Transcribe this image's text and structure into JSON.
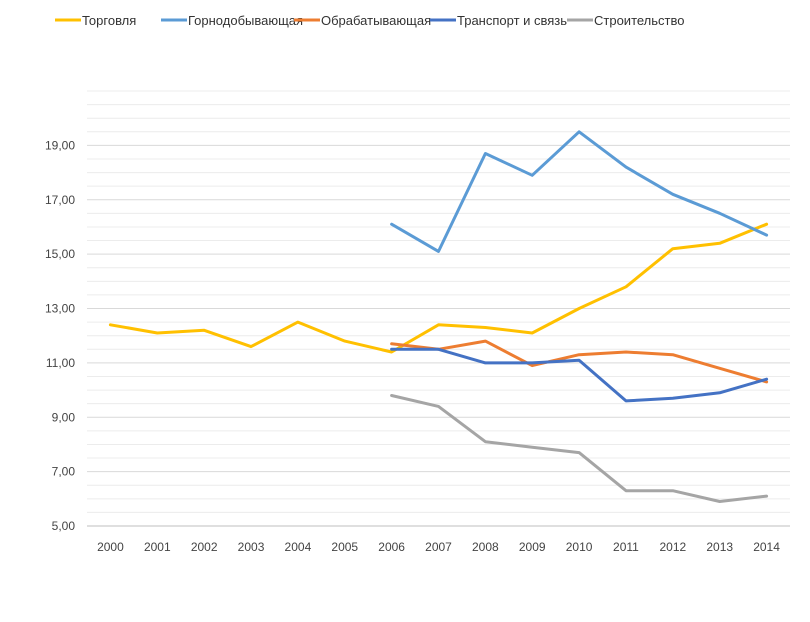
{
  "chart_data": {
    "type": "line",
    "title": "",
    "xlabel": "",
    "ylabel": "",
    "x": [
      "2000",
      "2001",
      "2002",
      "2003",
      "2004",
      "2005",
      "2006",
      "2007",
      "2008",
      "2009",
      "2010",
      "2011",
      "2012",
      "2013",
      "2014"
    ],
    "ylim": [
      5,
      21
    ],
    "yticks": [
      "5,00",
      "7,00",
      "9,00",
      "11,00",
      "13,00",
      "15,00",
      "17,00",
      "19,00"
    ],
    "ytick_values": [
      5,
      7,
      9,
      11,
      13,
      15,
      17,
      19
    ],
    "grid": true,
    "legend_position": "top",
    "series": [
      {
        "name": "Торговля",
        "color": "#FFC000",
        "values": [
          12.4,
          12.1,
          12.2,
          11.6,
          12.5,
          11.8,
          11.4,
          12.4,
          12.3,
          12.1,
          13.0,
          13.8,
          15.2,
          15.4,
          16.1
        ]
      },
      {
        "name": "Горнодобывающая",
        "color": "#5B9BD5",
        "values": [
          null,
          null,
          null,
          null,
          null,
          null,
          16.1,
          15.1,
          18.7,
          17.9,
          19.5,
          18.2,
          17.2,
          16.5,
          15.7
        ]
      },
      {
        "name": "Обрабатывающая",
        "color": "#ED7D31",
        "values": [
          null,
          null,
          null,
          null,
          null,
          null,
          11.7,
          11.5,
          11.8,
          10.9,
          11.3,
          11.4,
          11.3,
          10.8,
          10.3
        ]
      },
      {
        "name": "Транспорт и связь",
        "color": "#4472C4",
        "values": [
          null,
          null,
          null,
          null,
          null,
          null,
          11.5,
          11.5,
          11.0,
          11.0,
          11.1,
          9.6,
          9.7,
          9.9,
          10.4
        ]
      },
      {
        "name": "Строительство",
        "color": "#A5A5A5",
        "values": [
          null,
          null,
          null,
          null,
          null,
          null,
          9.8,
          9.4,
          8.1,
          7.9,
          7.7,
          6.3,
          6.3,
          5.9,
          6.1
        ]
      }
    ]
  }
}
